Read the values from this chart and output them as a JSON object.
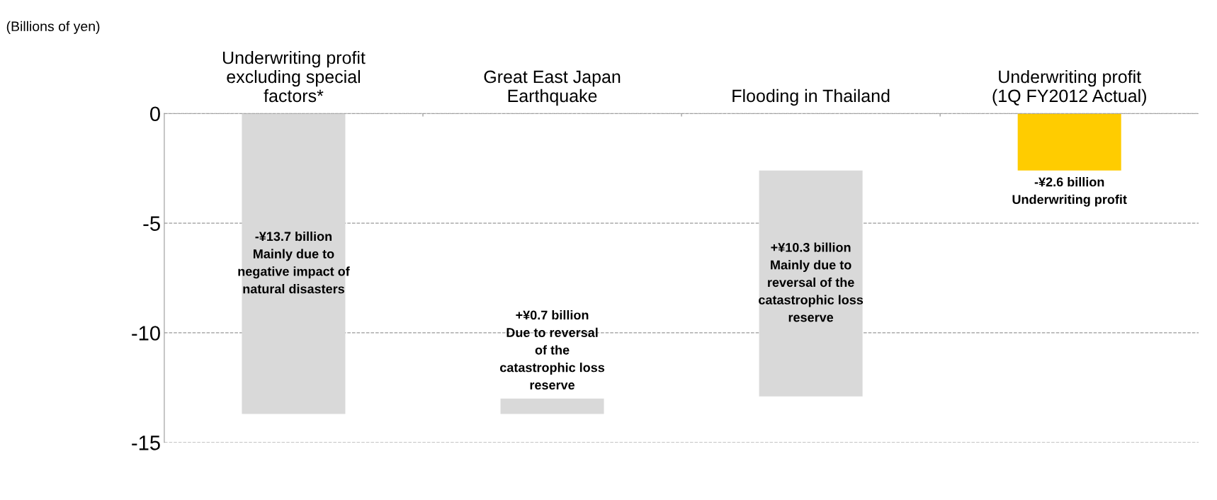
{
  "chart_data": {
    "type": "bar",
    "ylabel": "(Billions of yen)",
    "categories": [
      "Underwriting profit\nexcluding special\nfactors*",
      "Great East Japan\nEarthquake",
      "Flooding in Thailand",
      "Underwriting profit\n(1Q FY2012 Actual)"
    ],
    "values": [
      -13.7,
      0.7,
      10.3,
      -2.6
    ],
    "base": [
      0,
      -13.7,
      -12.9,
      0
    ],
    "colors": [
      "#d9d9d9",
      "#d9d9d9",
      "#d9d9d9",
      "#ffcc00"
    ],
    "ylim": [
      -15,
      0
    ],
    "yticks": [
      -15,
      -10,
      -5,
      0
    ],
    "grid": "y",
    "value_labels": [
      "-¥13.7 billion\nMainly due to\nnegative impact of\nnatural disasters",
      "+¥0.7 billion\nDue to reversal\nof the\ncatastrophic loss\nreserve",
      "+¥10.3 billion\nMainly due to\nreversal of the\ncatastrophic loss\nreserve",
      "-¥2.6 billion\nUnderwriting profit"
    ]
  }
}
